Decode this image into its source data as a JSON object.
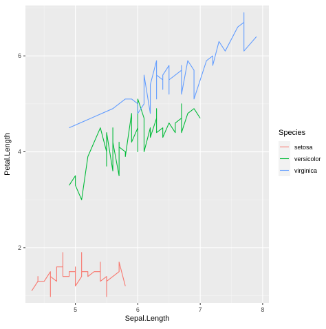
{
  "chart_data": {
    "type": "line",
    "xlabel": "Sepal.Length",
    "ylabel": "Petal.Length",
    "xlim": [
      4.2,
      8.1
    ],
    "ylim": [
      0.85,
      7.05
    ],
    "xticks": [
      5,
      6,
      7,
      8
    ],
    "xtick_labels": [
      "5",
      "6",
      "7",
      "8"
    ],
    "yticks": [
      2,
      4,
      6
    ],
    "ytick_labels": [
      "2",
      "4",
      "6"
    ],
    "grid": true,
    "legend": {
      "title": "Species",
      "position": "right",
      "entries": [
        "setosa",
        "versicolor",
        "virginica"
      ]
    },
    "series": [
      {
        "name": "setosa",
        "color": "#F8766D",
        "points": [
          [
            4.3,
            1.1
          ],
          [
            4.4,
            1.3
          ],
          [
            4.4,
            1.4
          ],
          [
            4.4,
            1.3
          ],
          [
            4.5,
            1.3
          ],
          [
            4.6,
            1.5
          ],
          [
            4.6,
            0.98
          ],
          [
            4.6,
            1.4
          ],
          [
            4.7,
            1.3
          ],
          [
            4.7,
            1.6
          ],
          [
            4.8,
            1.6
          ],
          [
            4.8,
            1.9
          ],
          [
            4.8,
            1.4
          ],
          [
            4.9,
            1.4
          ],
          [
            4.9,
            1.5
          ],
          [
            5.0,
            1.5
          ],
          [
            5.0,
            1.4
          ],
          [
            5.0,
            1.6
          ],
          [
            5.0,
            1.2
          ],
          [
            5.1,
            1.4
          ],
          [
            5.1,
            1.9
          ],
          [
            5.1,
            1.5
          ],
          [
            5.2,
            1.5
          ],
          [
            5.2,
            1.4
          ],
          [
            5.3,
            1.5
          ],
          [
            5.4,
            1.5
          ],
          [
            5.4,
            1.7
          ],
          [
            5.4,
            1.3
          ],
          [
            5.5,
            1.4
          ],
          [
            5.5,
            0.98
          ],
          [
            5.5,
            1.3
          ],
          [
            5.6,
            1.4
          ],
          [
            5.7,
            1.5
          ],
          [
            5.7,
            1.7
          ],
          [
            5.8,
            1.2
          ]
        ]
      },
      {
        "name": "versicolor",
        "color": "#00BA38",
        "points": [
          [
            4.9,
            3.3
          ],
          [
            5.0,
            3.5
          ],
          [
            5.0,
            3.3
          ],
          [
            5.1,
            3.0
          ],
          [
            5.2,
            3.9
          ],
          [
            5.4,
            4.5
          ],
          [
            5.5,
            4.0
          ],
          [
            5.5,
            3.7
          ],
          [
            5.5,
            4.4
          ],
          [
            5.6,
            3.6
          ],
          [
            5.6,
            4.5
          ],
          [
            5.6,
            3.9
          ],
          [
            5.6,
            4.1
          ],
          [
            5.6,
            4.2
          ],
          [
            5.7,
            3.5
          ],
          [
            5.7,
            4.2
          ],
          [
            5.7,
            4.1
          ],
          [
            5.8,
            4.0
          ],
          [
            5.8,
            3.9
          ],
          [
            5.9,
            4.8
          ],
          [
            5.9,
            4.2
          ],
          [
            6.0,
            4.5
          ],
          [
            6.0,
            4.0
          ],
          [
            6.0,
            5.1
          ],
          [
            6.1,
            4.7
          ],
          [
            6.1,
            4.0
          ],
          [
            6.2,
            4.5
          ],
          [
            6.2,
            4.3
          ],
          [
            6.3,
            4.7
          ],
          [
            6.3,
            4.9
          ],
          [
            6.3,
            4.4
          ],
          [
            6.4,
            4.5
          ],
          [
            6.4,
            4.3
          ],
          [
            6.5,
            4.6
          ],
          [
            6.6,
            4.4
          ],
          [
            6.6,
            4.6
          ],
          [
            6.7,
            4.7
          ],
          [
            6.7,
            5.0
          ],
          [
            6.7,
            4.4
          ],
          [
            6.8,
            4.8
          ],
          [
            6.9,
            4.9
          ],
          [
            7.0,
            4.7
          ]
        ]
      },
      {
        "name": "virginica",
        "color": "#619CFF",
        "points": [
          [
            4.9,
            4.5
          ],
          [
            5.6,
            4.9
          ],
          [
            5.7,
            5.0
          ],
          [
            5.8,
            5.1
          ],
          [
            5.9,
            5.1
          ],
          [
            6.0,
            5.0
          ],
          [
            6.0,
            4.8
          ],
          [
            6.1,
            5.0
          ],
          [
            6.1,
            5.6
          ],
          [
            6.2,
            4.8
          ],
          [
            6.2,
            5.4
          ],
          [
            6.3,
            5.9
          ],
          [
            6.3,
            5.1
          ],
          [
            6.3,
            5.6
          ],
          [
            6.4,
            5.5
          ],
          [
            6.4,
            5.3
          ],
          [
            6.4,
            5.6
          ],
          [
            6.5,
            5.8
          ],
          [
            6.5,
            5.2
          ],
          [
            6.5,
            5.5
          ],
          [
            6.7,
            5.7
          ],
          [
            6.7,
            5.8
          ],
          [
            6.7,
            5.2
          ],
          [
            6.8,
            5.9
          ],
          [
            6.9,
            5.7
          ],
          [
            6.9,
            5.1
          ],
          [
            7.1,
            5.9
          ],
          [
            7.2,
            6.0
          ],
          [
            7.2,
            5.8
          ],
          [
            7.3,
            6.3
          ],
          [
            7.4,
            6.1
          ],
          [
            7.6,
            6.6
          ],
          [
            7.7,
            6.7
          ],
          [
            7.7,
            6.9
          ],
          [
            7.7,
            6.1
          ],
          [
            7.9,
            6.4
          ]
        ]
      }
    ]
  }
}
